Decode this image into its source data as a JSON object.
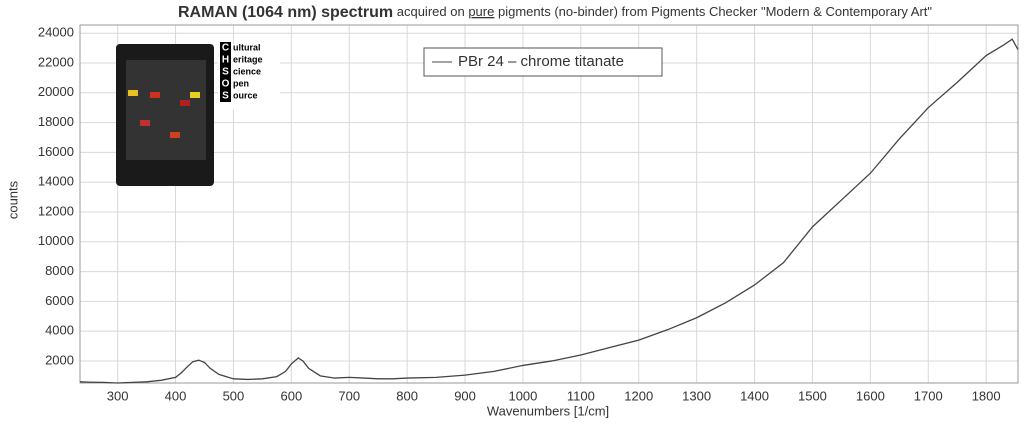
{
  "chart_data": {
    "type": "line",
    "title": "RAMAN (1064 nm) spectrum",
    "subtitle_parts": [
      "acquired on",
      "pure",
      "pigments (no-binder) from Pigments Checker \"Modern & Contemporary Art\""
    ],
    "x_label": "Wavenumbers [1/cm]",
    "y_label": "counts",
    "xlim": [
      235,
      1855
    ],
    "ylim": [
      520,
      24550
    ],
    "xticks": [
      300,
      400,
      500,
      600,
      700,
      800,
      900,
      1000,
      1100,
      1200,
      1300,
      1400,
      1500,
      1600,
      1700,
      1800
    ],
    "yticks": [
      2000,
      4000,
      6000,
      8000,
      10000,
      12000,
      14000,
      16000,
      18000,
      20000,
      22000,
      24000
    ],
    "grid": true,
    "legend": "top-center",
    "inset": {
      "letters": [
        "C",
        "H",
        "S",
        "O",
        "S"
      ],
      "words": [
        "ultural",
        "eritage",
        "cience",
        "pen",
        "ource"
      ]
    },
    "x": [
      235,
      250,
      275,
      300,
      325,
      350,
      375,
      400,
      410,
      420,
      430,
      440,
      450,
      460,
      475,
      500,
      525,
      550,
      575,
      590,
      600,
      612,
      620,
      630,
      650,
      675,
      700,
      725,
      750,
      775,
      800,
      850,
      900,
      950,
      1000,
      1050,
      1100,
      1150,
      1200,
      1250,
      1300,
      1350,
      1400,
      1450,
      1500,
      1550,
      1600,
      1650,
      1700,
      1750,
      1800,
      1830,
      1845,
      1855
    ],
    "series": [
      {
        "name": "PBr 24 – chrome titanate",
        "color": "#444444",
        "values": [
          600,
          580,
          560,
          520,
          560,
          600,
          700,
          900,
          1200,
          1600,
          1950,
          2050,
          1900,
          1500,
          1100,
          800,
          760,
          800,
          950,
          1300,
          1800,
          2200,
          2000,
          1500,
          1000,
          850,
          900,
          850,
          800,
          800,
          850,
          900,
          1050,
          1300,
          1700,
          2000,
          2400,
          2900,
          3400,
          4100,
          4900,
          5900,
          7100,
          8600,
          11000,
          12800,
          14600,
          16900,
          19000,
          20700,
          22500,
          23200,
          23600,
          22900
        ]
      }
    ]
  }
}
